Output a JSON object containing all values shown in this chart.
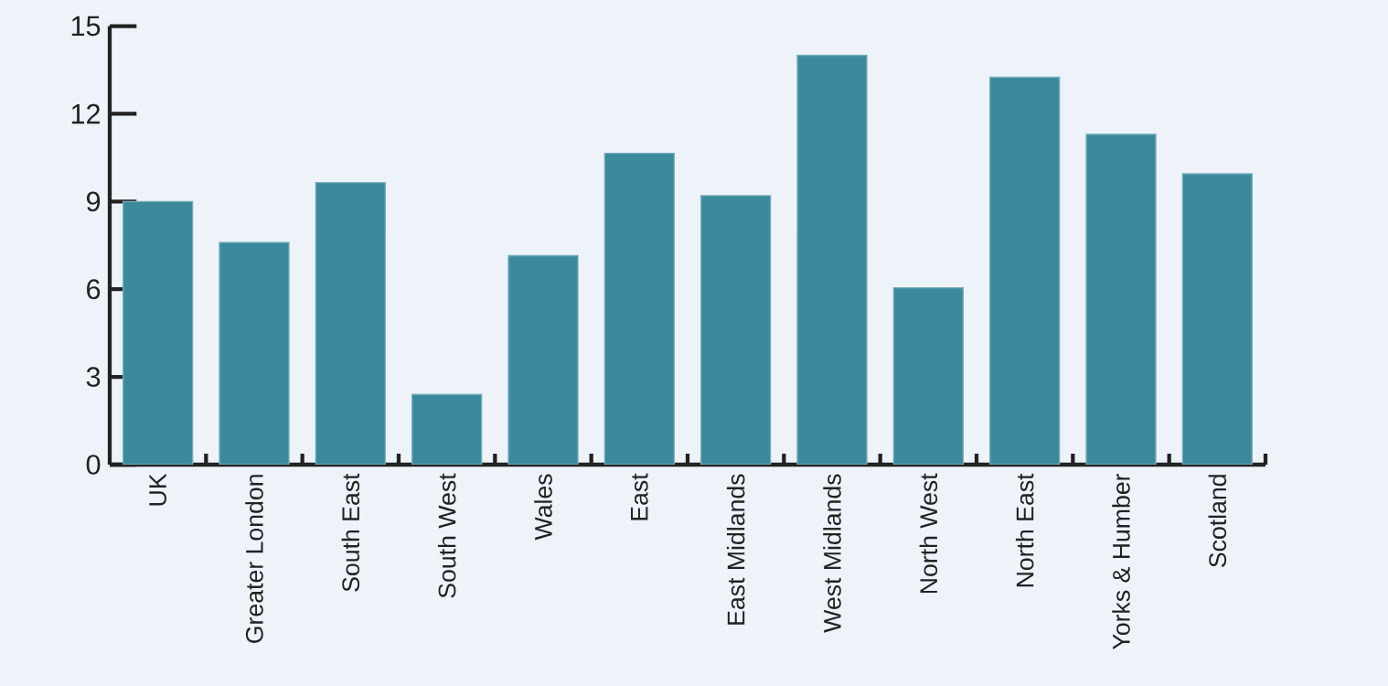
{
  "chart_data": {
    "type": "bar",
    "categories": [
      "UK",
      "Greater London",
      "South East",
      "South West",
      "Wales",
      "East",
      "East Midlands",
      "West Midlands",
      "North West",
      "North East",
      "Yorks & Humber",
      "Scotland"
    ],
    "values": [
      9.0,
      7.6,
      9.65,
      2.4,
      7.15,
      10.65,
      9.2,
      14.0,
      6.05,
      13.25,
      11.3,
      9.95
    ],
    "color": "#3b8a9c",
    "ylim": [
      0,
      15
    ],
    "yticks": [
      0,
      3,
      6,
      9,
      12,
      15
    ]
  }
}
